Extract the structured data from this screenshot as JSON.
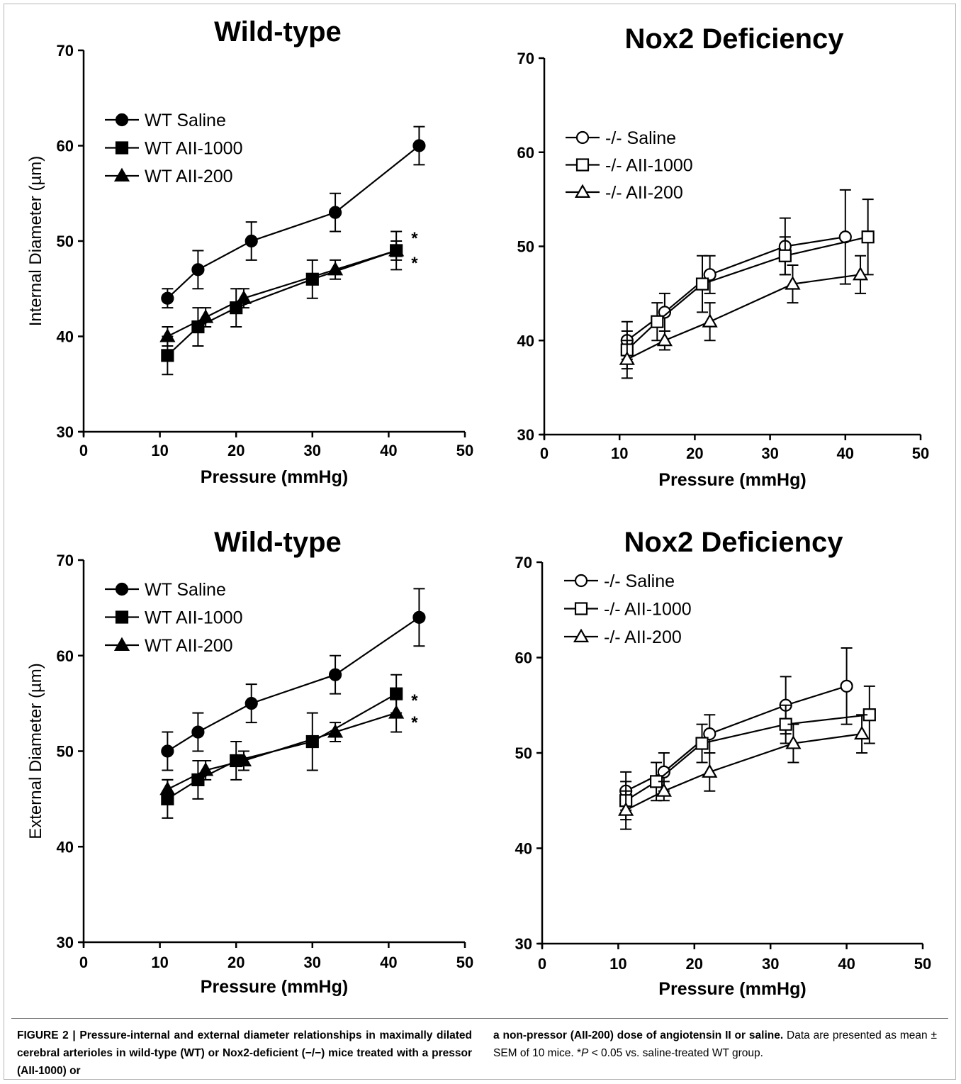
{
  "chart_data": [
    {
      "type": "line",
      "title": "Wild-type",
      "xlabel": "Pressure (mmHg)",
      "ylabel": "Internal Diameter (µm)",
      "xlim": [
        0,
        50
      ],
      "ylim": [
        30,
        70
      ],
      "xticks": [
        0,
        10,
        20,
        30,
        40,
        50
      ],
      "yticks": [
        30,
        40,
        50,
        60,
        70
      ],
      "legend_position": "top-left",
      "series": [
        {
          "name": "WT Saline",
          "marker": "circle",
          "filled": true,
          "x": [
            11,
            15,
            22,
            33,
            44
          ],
          "y": [
            44,
            47,
            50,
            53,
            60
          ],
          "err": [
            1,
            2,
            2,
            2,
            2
          ]
        },
        {
          "name": "WT AII-1000",
          "marker": "square",
          "filled": true,
          "x": [
            11,
            15,
            20,
            30,
            41
          ],
          "y": [
            38,
            41,
            43,
            46,
            49
          ],
          "err": [
            2,
            2,
            2,
            2,
            2
          ]
        },
        {
          "name": "WT AII-200",
          "marker": "triangle",
          "filled": true,
          "x": [
            11,
            16,
            21,
            33,
            41
          ],
          "y": [
            40,
            42,
            44,
            47,
            49
          ],
          "err": [
            1,
            1,
            1,
            1,
            1
          ]
        }
      ],
      "annotations": [
        {
          "text": "*",
          "x": 43.4,
          "y": 50.6
        },
        {
          "text": "*",
          "x": 43.4,
          "y": 48.0
        }
      ]
    },
    {
      "type": "line",
      "title": "Nox2 Deficiency",
      "xlabel": "Pressure (mmHg)",
      "ylabel": "",
      "xlim": [
        0,
        50
      ],
      "ylim": [
        30,
        70
      ],
      "xticks": [
        0,
        10,
        20,
        30,
        40,
        50
      ],
      "yticks": [
        30,
        40,
        50,
        60,
        70
      ],
      "legend_position": "top-left",
      "series": [
        {
          "name": "-/- Saline",
          "marker": "circle",
          "filled": false,
          "x": [
            11,
            16,
            22,
            32,
            40
          ],
          "y": [
            40,
            43,
            47,
            50,
            51
          ],
          "err": [
            2,
            2,
            2,
            3,
            5
          ]
        },
        {
          "name": "-/- AII-1000",
          "marker": "square",
          "filled": false,
          "x": [
            11,
            15,
            21,
            32,
            43
          ],
          "y": [
            39,
            42,
            46,
            49,
            51
          ],
          "err": [
            2,
            2,
            3,
            2,
            4
          ]
        },
        {
          "name": "-/- AII-200",
          "marker": "triangle",
          "filled": false,
          "x": [
            11,
            16,
            22,
            33,
            42
          ],
          "y": [
            38,
            40,
            42,
            46,
            47
          ],
          "err": [
            2,
            1,
            2,
            2,
            2
          ]
        }
      ],
      "annotations": []
    },
    {
      "type": "line",
      "title": "Wild-type",
      "xlabel": "Pressure (mmHg)",
      "ylabel": "External Diameter (µm)",
      "xlim": [
        0,
        50
      ],
      "ylim": [
        30,
        70
      ],
      "xticks": [
        0,
        10,
        20,
        30,
        40,
        50
      ],
      "yticks": [
        30,
        40,
        50,
        60,
        70
      ],
      "legend_position": "top-left",
      "series": [
        {
          "name": "WT Saline",
          "marker": "circle",
          "filled": true,
          "x": [
            11,
            15,
            22,
            33,
            44
          ],
          "y": [
            50,
            52,
            55,
            58,
            64
          ],
          "err": [
            2,
            2,
            2,
            2,
            3
          ]
        },
        {
          "name": "WT AII-1000",
          "marker": "square",
          "filled": true,
          "x": [
            11,
            15,
            20,
            30,
            41
          ],
          "y": [
            45,
            47,
            49,
            51,
            56
          ],
          "err": [
            2,
            2,
            2,
            3,
            2
          ]
        },
        {
          "name": "WT AII-200",
          "marker": "triangle",
          "filled": true,
          "x": [
            11,
            16,
            21,
            33,
            41
          ],
          "y": [
            46,
            48,
            49,
            52,
            54
          ],
          "err": [
            1,
            1,
            1,
            1,
            2
          ]
        }
      ],
      "annotations": [
        {
          "text": "*",
          "x": 43.4,
          "y": 55.6
        },
        {
          "text": "*",
          "x": 43.4,
          "y": 53.3
        }
      ]
    },
    {
      "type": "line",
      "title": "Nox2 Deficiency",
      "xlabel": "Pressure (mmHg)",
      "ylabel": "",
      "xlim": [
        0,
        50
      ],
      "ylim": [
        30,
        70
      ],
      "xticks": [
        0,
        10,
        20,
        30,
        40,
        50
      ],
      "yticks": [
        30,
        40,
        50,
        60,
        70
      ],
      "legend_position": "top-left",
      "series": [
        {
          "name": "-/- Saline",
          "marker": "circle",
          "filled": false,
          "x": [
            11,
            16,
            22,
            32,
            40
          ],
          "y": [
            46,
            48,
            52,
            55,
            57
          ],
          "err": [
            2,
            2,
            2,
            3,
            4
          ]
        },
        {
          "name": "-/- AII-1000",
          "marker": "square",
          "filled": false,
          "x": [
            11,
            15,
            21,
            32,
            43
          ],
          "y": [
            45,
            47,
            51,
            53,
            54
          ],
          "err": [
            2,
            2,
            2,
            2,
            3
          ]
        },
        {
          "name": "-/- AII-200",
          "marker": "triangle",
          "filled": false,
          "x": [
            11,
            16,
            22,
            33,
            42
          ],
          "y": [
            44,
            46,
            48,
            51,
            52
          ],
          "err": [
            2,
            1,
            2,
            2,
            2
          ]
        }
      ],
      "annotations": []
    }
  ],
  "caption": {
    "figure_label": "FIGURE 2 |",
    "bold_left": "Pressure-internal and external diameter relationships in maximally dilated cerebral arterioles in wild-type (WT) or Nox2-deficient (−/−) mice treated with a pressor (AII-1000) or",
    "bold_right": "a non-pressor (AII-200) dose of angiotensin II or saline.",
    "normal_1": "Data are presented as mean ± SEM of 10 mice. *",
    "italic_p": "P",
    "normal_2": " < 0.05 vs. saline-treated WT group."
  }
}
